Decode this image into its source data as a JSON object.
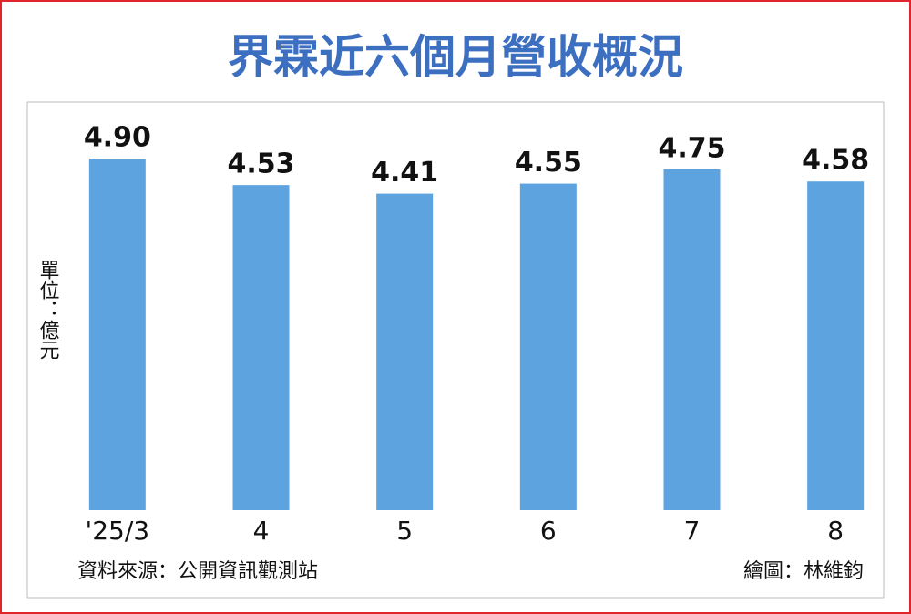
{
  "chart_data": {
    "type": "bar",
    "title": "界霖近六個月營收概況",
    "y_label": "單位：億元",
    "categories": [
      "'25/3",
      "4",
      "5",
      "6",
      "7",
      "8"
    ],
    "values": [
      4.9,
      4.53,
      4.41,
      4.55,
      4.75,
      4.58
    ],
    "value_labels": [
      "4.90",
      "4.53",
      "4.41",
      "4.55",
      "4.75",
      "4.58"
    ],
    "color": "#5ca3df",
    "source": "資料來源：公開資訊觀測站",
    "credit": "繪圖：林維鈞"
  }
}
